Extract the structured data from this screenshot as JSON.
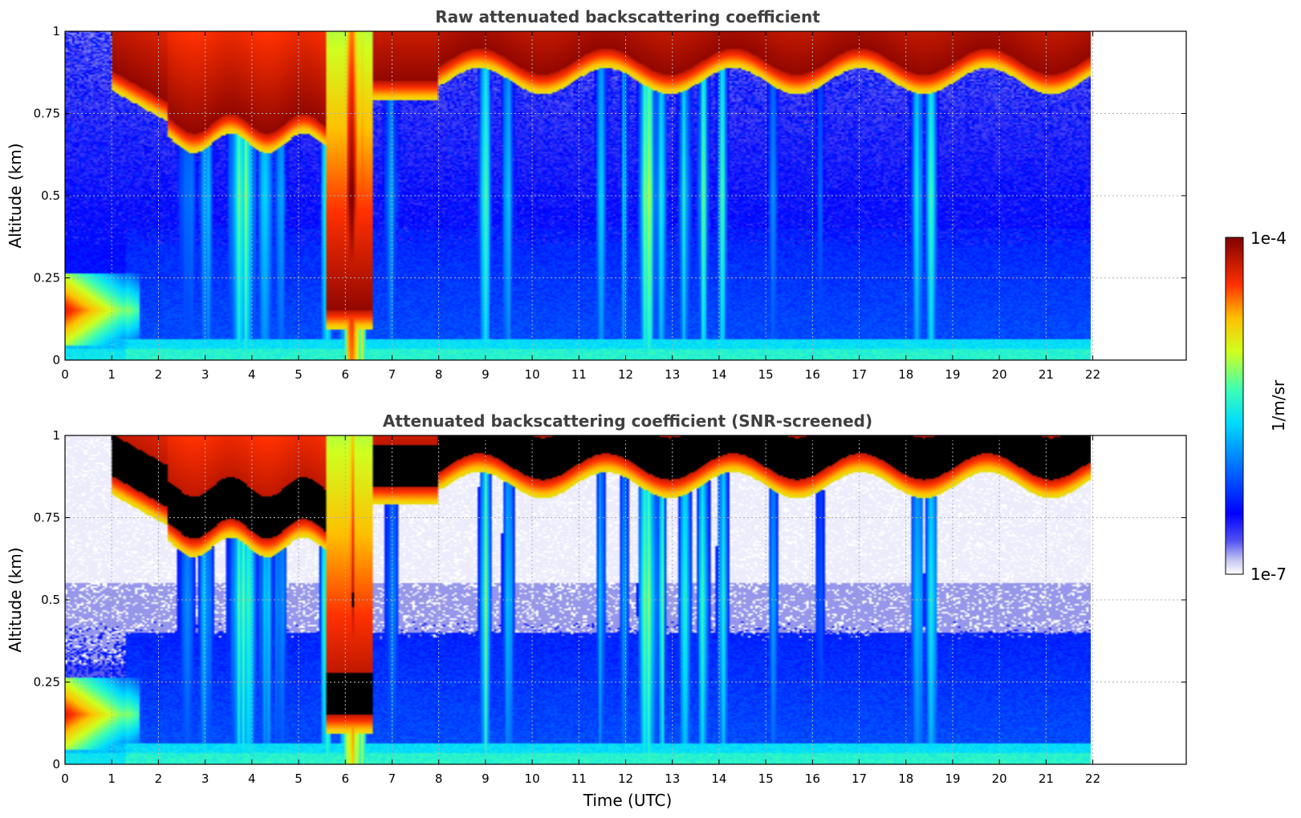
{
  "chart_data": [
    {
      "type": "heatmap",
      "title": "Raw attenuated backscattering coefficient",
      "ylabel": "Altitude (km)",
      "xlabel": "",
      "xlim": [
        0,
        24
      ],
      "data_end_time": 22,
      "ylim": [
        0,
        1
      ],
      "x_ticks": [
        0,
        1,
        2,
        3,
        4,
        5,
        6,
        7,
        8,
        9,
        10,
        11,
        12,
        13,
        14,
        15,
        16,
        17,
        18,
        19,
        20,
        21,
        22
      ],
      "y_ticks": [
        0,
        0.25,
        0.5,
        0.75,
        1
      ],
      "y_tick_labels": [
        "0",
        "0.25",
        "0.5",
        "0.75",
        "1"
      ],
      "grid": true,
      "screened": false,
      "features": {
        "cloud_top_layer": "dense backscatter (>1e-4) near 0.85-1 km, 1-6 h and 8-22 h",
        "low_cloud": "0.05-0.25 km, 0-1.5 h",
        "precipitation_columns_h": [
          3.8,
          4.5,
          5.6,
          6.2,
          9.0,
          12.5,
          13.5,
          14.0,
          18.5
        ]
      }
    },
    {
      "type": "heatmap",
      "title": "Attenuated backscattering coefficient (SNR-screened)",
      "ylabel": "Altitude (km)",
      "xlabel": "Time (UTC)",
      "xlim": [
        0,
        24
      ],
      "data_end_time": 22,
      "ylim": [
        0,
        1
      ],
      "x_ticks": [
        0,
        1,
        2,
        3,
        4,
        5,
        6,
        7,
        8,
        9,
        10,
        11,
        12,
        13,
        14,
        15,
        16,
        17,
        18,
        19,
        20,
        21,
        22
      ],
      "y_ticks": [
        0,
        0.25,
        0.5,
        0.75,
        1
      ],
      "y_tick_labels": [
        "0",
        "0.25",
        "0.5",
        "0.75",
        "1"
      ],
      "grid": true,
      "screened": true,
      "features": {
        "saturated_color": "#000000",
        "screened_out_color": "#ffffff"
      }
    }
  ],
  "colorbar": {
    "label": "1/m/sr",
    "min_label": "1e-7",
    "max_label": "1e-4",
    "scale": "log",
    "range": [
      1e-07,
      0.0001
    ],
    "colormap": "jet"
  }
}
